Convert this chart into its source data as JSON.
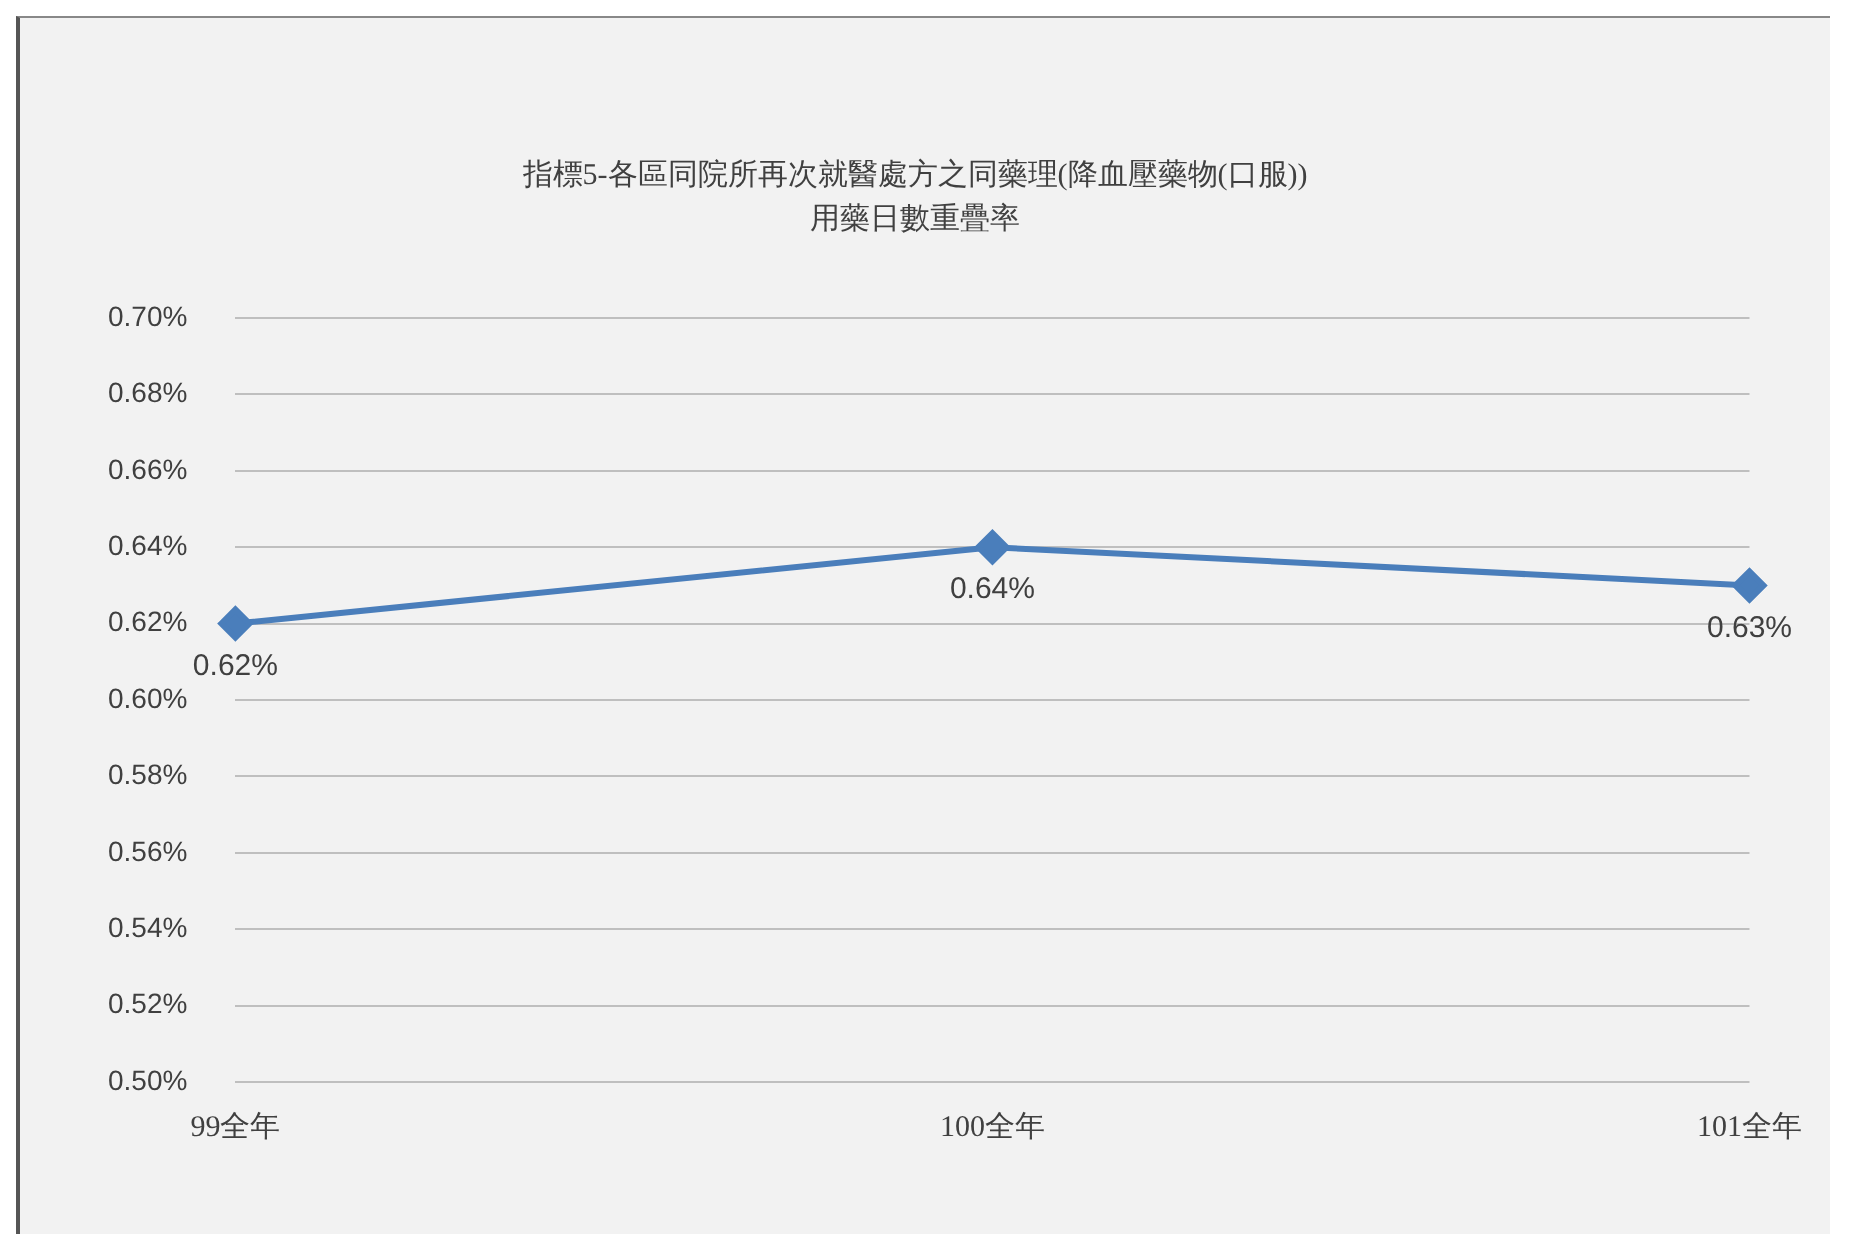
{
  "chart_data": {
    "type": "line",
    "title": "指標5-各區同院所再次就醫處方之同藥理(降血壓藥物(口服))",
    "subtitle": "用藥日數重疊率",
    "categories": [
      "99全年",
      "100全年",
      "101全年"
    ],
    "series": [
      {
        "color": "#4a7ebb",
        "values": [
          0.62,
          0.64,
          0.63
        ],
        "value_labels": [
          "0.62%",
          "0.64%",
          "0.63%"
        ]
      }
    ],
    "ylim": [
      0.5,
      0.7
    ],
    "yticks": [
      {
        "value": 0.5,
        "label": "0.50%"
      },
      {
        "value": 0.52,
        "label": "0.52%"
      },
      {
        "value": 0.54,
        "label": "0.54%"
      },
      {
        "value": 0.56,
        "label": "0.56%"
      },
      {
        "value": 0.58,
        "label": "0.58%"
      },
      {
        "value": 0.6,
        "label": "0.60%"
      },
      {
        "value": 0.62,
        "label": "0.62%"
      },
      {
        "value": 0.64,
        "label": "0.64%"
      },
      {
        "value": 0.66,
        "label": "0.66%"
      },
      {
        "value": 0.68,
        "label": "0.68%"
      },
      {
        "value": 0.7,
        "label": "0.70%"
      }
    ],
    "grid": "y",
    "legend": false,
    "marker": "diamond",
    "line_style": "solid"
  }
}
